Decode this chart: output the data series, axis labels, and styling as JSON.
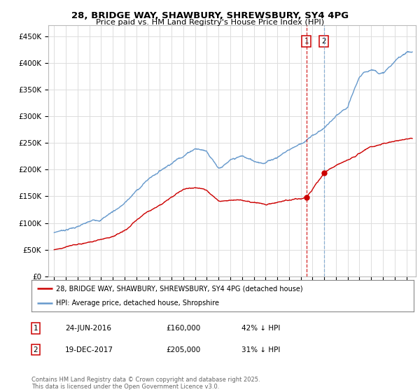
{
  "title": "28, BRIDGE WAY, SHAWBURY, SHREWSBURY, SY4 4PG",
  "subtitle": "Price paid vs. HM Land Registry's House Price Index (HPI)",
  "sale1_date": "24-JUN-2016",
  "sale1_price": 160000,
  "sale1_label": "42% ↓ HPI",
  "sale2_date": "19-DEC-2017",
  "sale2_price": 205000,
  "sale2_label": "31% ↓ HPI",
  "legend_line1": "28, BRIDGE WAY, SHAWBURY, SHREWSBURY, SY4 4PG (detached house)",
  "legend_line2": "HPI: Average price, detached house, Shropshire",
  "footer": "Contains HM Land Registry data © Crown copyright and database right 2025.\nThis data is licensed under the Open Government Licence v3.0.",
  "red_color": "#cc0000",
  "blue_color": "#6699cc",
  "background_color": "#ffffff",
  "grid_color": "#dddddd",
  "ylim": [
    0,
    470000
  ],
  "xlim_start": 1994.5,
  "xlim_end": 2025.8,
  "sale1_x": 2016.48,
  "sale2_x": 2017.97,
  "hpi_anchors_x": [
    1995,
    1997,
    1999,
    2001,
    2003,
    2005,
    2007,
    2008,
    2009,
    2010,
    2011,
    2012,
    2013,
    2014,
    2015,
    2016,
    2017,
    2018,
    2019,
    2020,
    2021,
    2022,
    2023,
    2024,
    2025
  ],
  "hpi_anchors_y": [
    82000,
    95000,
    108000,
    140000,
    185000,
    220000,
    252000,
    248000,
    220000,
    232000,
    238000,
    228000,
    228000,
    240000,
    255000,
    268000,
    282000,
    298000,
    318000,
    330000,
    385000,
    400000,
    395000,
    415000,
    435000
  ],
  "price_anchors_x": [
    1995,
    1997,
    1999,
    2001,
    2003,
    2005,
    2006,
    2007,
    2008,
    2009,
    2010,
    2011,
    2012,
    2013,
    2014,
    2015,
    2016.0,
    2016.48,
    2017.97,
    2018.5,
    2019,
    2020,
    2021,
    2022,
    2023,
    2024,
    2025
  ],
  "price_anchors_y": [
    50000,
    58000,
    68000,
    85000,
    120000,
    148000,
    162000,
    168000,
    162000,
    145000,
    148000,
    150000,
    145000,
    142000,
    148000,
    152000,
    156000,
    160000,
    205000,
    212000,
    218000,
    228000,
    242000,
    252000,
    258000,
    262000,
    265000
  ]
}
